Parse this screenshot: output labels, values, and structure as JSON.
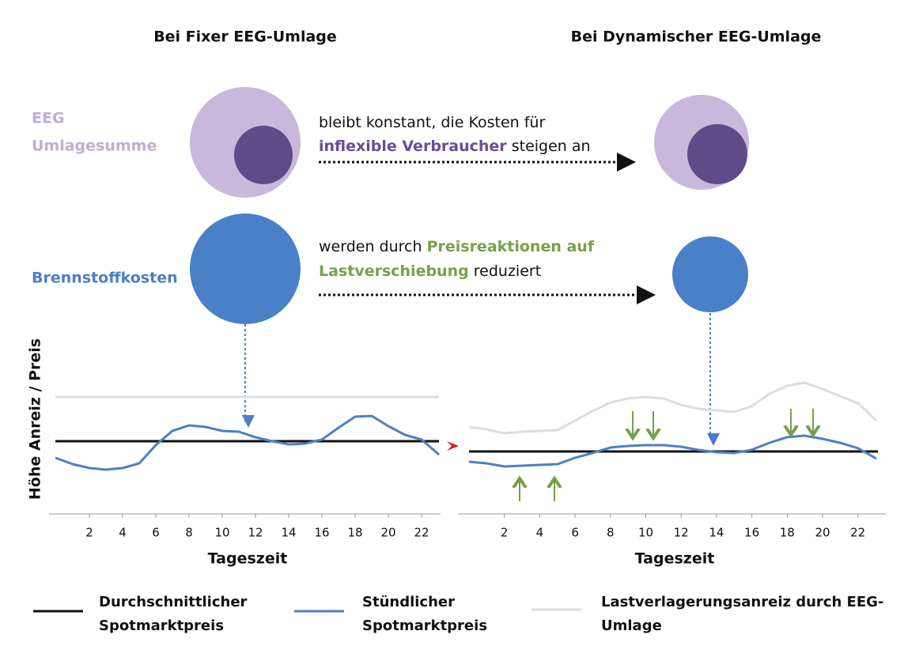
{
  "titles": {
    "left": "Bei Fixer EEG-Umlage",
    "right": "Bei Dynamischer EEG-Umlage"
  },
  "rows": [
    {
      "label_lines": [
        "EEG",
        "Umlagesumme"
      ],
      "text_lines": [
        [
          {
            "text": "bleibt konstant, die Kosten für",
            "style": "plain"
          }
        ],
        [
          {
            "text": "inflexible Verbraucher",
            "style": "purple"
          },
          {
            "text": " steigen an",
            "style": "plain"
          }
        ]
      ]
    },
    {
      "label_lines": [
        "Brennstoffkosten"
      ],
      "text_lines": [
        [
          {
            "text": "werden durch ",
            "style": "plain"
          },
          {
            "text": "Preisreaktionen auf",
            "style": "green"
          }
        ],
        [
          {
            "text": "Lastverschiebung",
            "style": "green"
          },
          {
            "text": " reduziert",
            "style": "plain"
          }
        ]
      ]
    }
  ],
  "y_label": "Höhe Anreiz  / Preis",
  "charts": [
    {
      "x_label": "Tageszeit",
      "x_ticks": [
        2,
        4,
        6,
        8,
        10,
        12,
        14,
        16,
        18,
        20,
        22
      ]
    },
    {
      "x_label": "Tageszeit",
      "x_ticks": [
        2,
        4,
        6,
        8,
        10,
        12,
        14,
        16,
        18,
        20,
        22
      ]
    }
  ],
  "legend": [
    {
      "lines": [
        "Durchschnittlicher",
        "Spotmarktpreis"
      ]
    },
    {
      "lines": [
        "Stündlicher",
        "Spotmarktpreis"
      ]
    },
    {
      "lines": [
        "Lastverlagerungsanreiz durch EEG-",
        "Umlage"
      ]
    }
  ]
}
